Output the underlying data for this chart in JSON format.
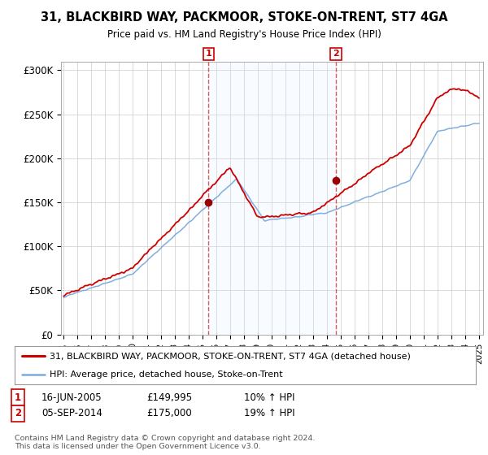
{
  "title": "31, BLACKBIRD WAY, PACKMOOR, STOKE-ON-TRENT, ST7 4GA",
  "subtitle": "Price paid vs. HM Land Registry's House Price Index (HPI)",
  "ylabel_ticks": [
    "£0",
    "£50K",
    "£100K",
    "£150K",
    "£200K",
    "£250K",
    "£300K"
  ],
  "ytick_values": [
    0,
    50000,
    100000,
    150000,
    200000,
    250000,
    300000
  ],
  "ylim": [
    0,
    310000
  ],
  "xlim_start": 1995.0,
  "xlim_end": 2025.3,
  "sale1_date": 2005.45,
  "sale1_price": 149995,
  "sale2_date": 2014.67,
  "sale2_price": 175000,
  "line1_color": "#cc0000",
  "line2_color": "#7aaadd",
  "vline_color": "#cc4444",
  "marker_color": "#990000",
  "shade_color": "#ddeeff",
  "background_color": "#ffffff",
  "grid_color": "#cccccc",
  "legend1_label": "31, BLACKBIRD WAY, PACKMOOR, STOKE-ON-TRENT, ST7 4GA (detached house)",
  "legend2_label": "HPI: Average price, detached house, Stoke-on-Trent",
  "footer": "Contains HM Land Registry data © Crown copyright and database right 2024.\nThis data is licensed under the Open Government Licence v3.0.",
  "xtick_years": [
    1995,
    1996,
    1997,
    1998,
    1999,
    2000,
    2001,
    2002,
    2003,
    2004,
    2005,
    2006,
    2007,
    2008,
    2009,
    2010,
    2011,
    2012,
    2013,
    2014,
    2015,
    2016,
    2017,
    2018,
    2019,
    2020,
    2021,
    2022,
    2023,
    2024,
    2025
  ]
}
